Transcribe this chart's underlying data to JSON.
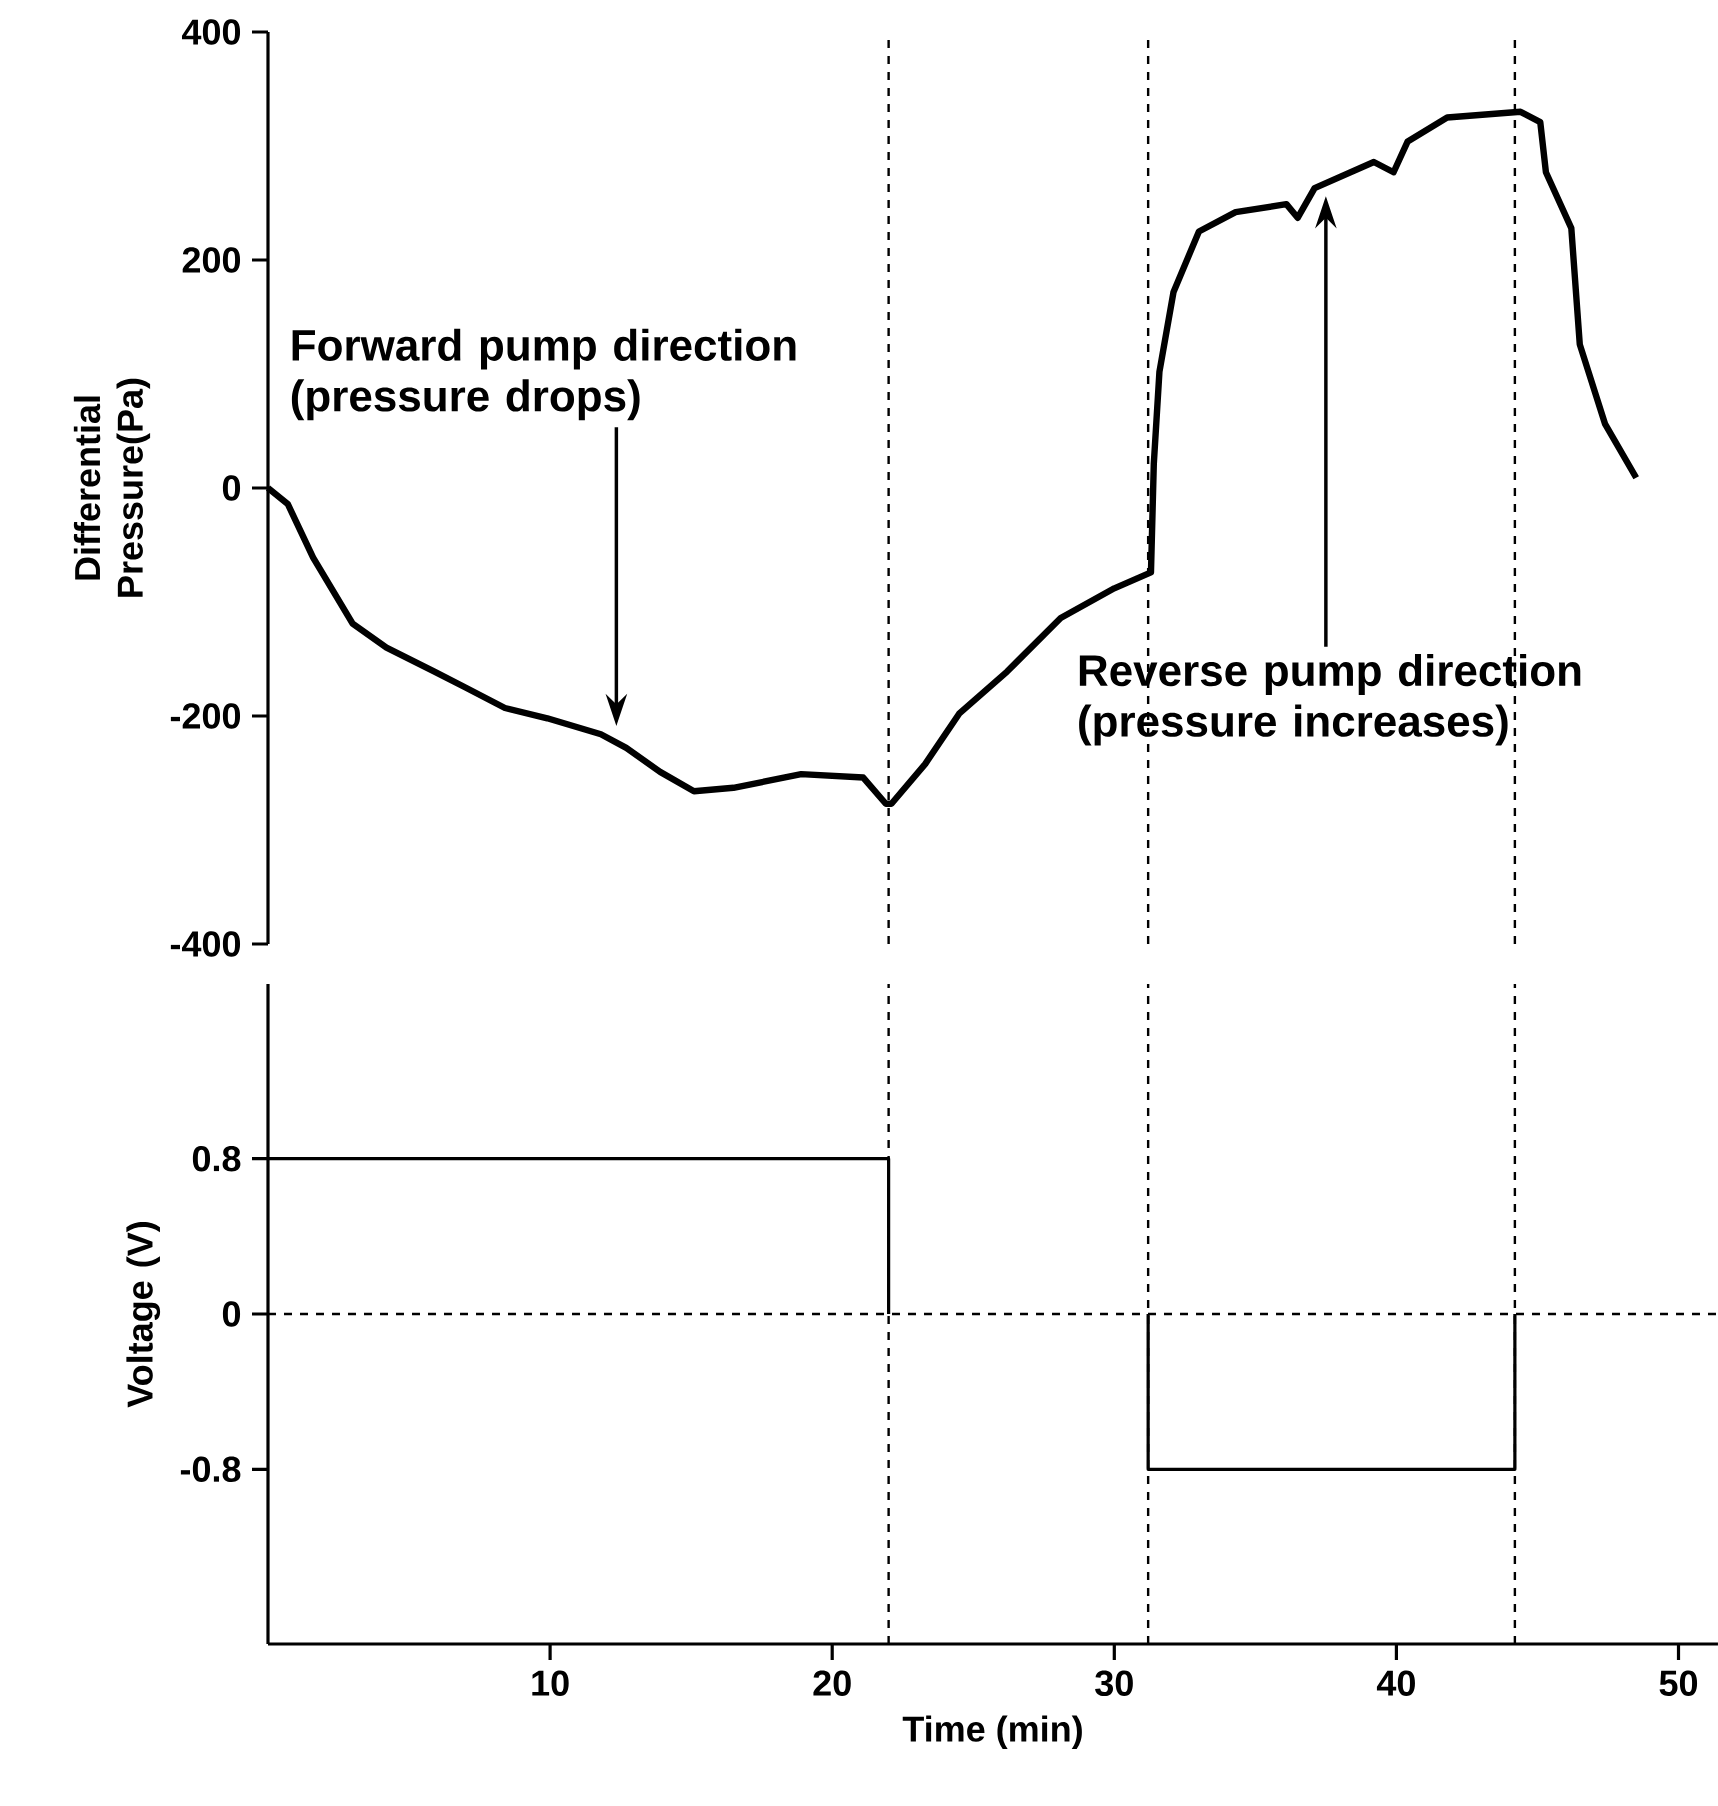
{
  "chart_data": [
    {
      "type": "line",
      "ylabel": "Differential Pressure(Pa)",
      "color": "#000000",
      "x": [
        0,
        0.7,
        1.6,
        3.0,
        4.2,
        5.9,
        7.0,
        8.4,
        9.9,
        11.8,
        12.7,
        13.9,
        15.1,
        16.5,
        18.9,
        21.1,
        21.9,
        22.1,
        23.3,
        24.5,
        26.2,
        28.1,
        30.0,
        31.3,
        31.4,
        31.6,
        32.1,
        33.0,
        34.3,
        36.1,
        36.5,
        37.1,
        39.2,
        39.9,
        40.4,
        41.8,
        44.4,
        45.1,
        45.3,
        46.2,
        46.5,
        47.4,
        48.5
      ],
      "values": [
        0,
        -14,
        -61,
        -119,
        -140,
        -161,
        -175,
        -193,
        -202,
        -216,
        -228,
        -249,
        -266,
        -263,
        -251,
        -254,
        -277,
        -277,
        -242,
        -198,
        -161,
        -114,
        -88,
        -74,
        21,
        102,
        172,
        225,
        242,
        249,
        237,
        263,
        286,
        277,
        304,
        325,
        330,
        321,
        277,
        228,
        126,
        56,
        9
      ],
      "xlim": [
        0,
        50
      ],
      "xticks": [
        10,
        20,
        30,
        40,
        50
      ],
      "ylim": [
        -400,
        400
      ],
      "yticks": [
        400,
        200,
        0,
        -200,
        -400
      ],
      "tick_labels": "y",
      "ref_lines": [
        {
          "axis": "x",
          "value": 22,
          "line_style": "dashed"
        },
        {
          "axis": "x",
          "value": 31.2,
          "line_style": "dashed"
        },
        {
          "axis": "x",
          "value": 44.2,
          "line_style": "dashed"
        }
      ],
      "annotations": [
        "Forward pump direction (pressure drops)",
        "Reverse pump direction (pressure increases)"
      ]
    },
    {
      "type": "line",
      "ylabel": "Voltage (V)",
      "xlabel": "Time (min)",
      "color": "#000000",
      "x": [
        0,
        22,
        22,
        26,
        31.2,
        31.2,
        44.2,
        44.2
      ],
      "values": [
        0.8,
        0.8,
        0,
        null,
        0,
        -0.8,
        -0.8,
        0
      ],
      "xlim": [
        0,
        51.4
      ],
      "xticks": [
        10,
        20,
        30,
        40,
        50
      ],
      "ylim": [
        -1.7,
        1.7
      ],
      "yticks": [
        0.8,
        0,
        -0.8
      ],
      "ref_lines": [
        {
          "axis": "y",
          "value": 0,
          "line_style": "dashed"
        },
        {
          "axis": "x",
          "value": 22,
          "line_style": "dashed"
        },
        {
          "axis": "x",
          "value": 31.2,
          "line_style": "dashed"
        },
        {
          "axis": "x",
          "value": 44.2,
          "line_style": "dashed"
        }
      ]
    }
  ]
}
